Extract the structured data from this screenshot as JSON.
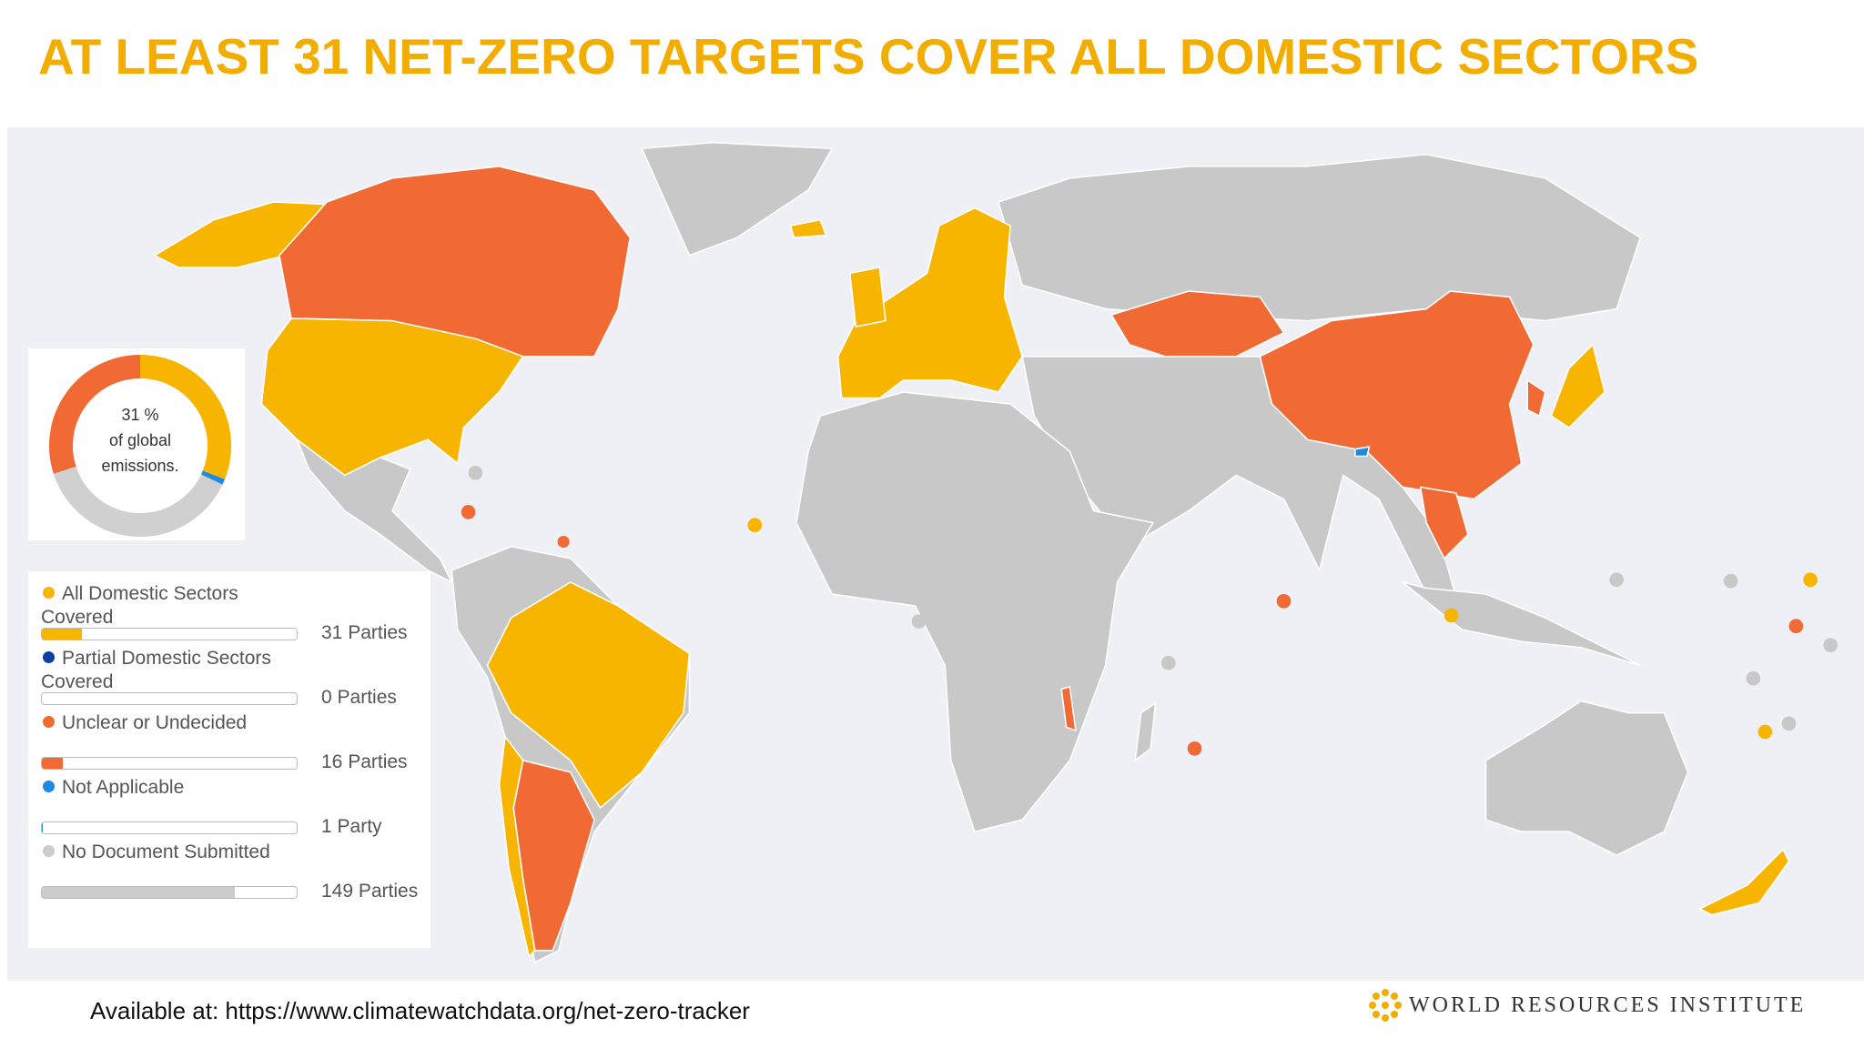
{
  "title": "AT LEAST 31 NET-ZERO TARGETS COVER ALL DOMESTIC SECTORS",
  "donut": {
    "center_label": "31 %",
    "caption": [
      "of global",
      "emissions."
    ],
    "values": [
      31,
      1,
      38,
      30
    ],
    "colors": [
      "#f7b500",
      "#1f8be0",
      "#d0d0d0",
      "#f26a33"
    ]
  },
  "legend": [
    {
      "label": "All Domestic Sectors Covered",
      "count": 31,
      "count_label": "31 Parties",
      "color": "#f7b500"
    },
    {
      "label": "Partial Domestic Sectors Covered",
      "count": 0,
      "count_label": "0 Parties",
      "color": "#0a3fa8"
    },
    {
      "label": "Unclear or Undecided",
      "count": 16,
      "count_label": "16 Parties",
      "color": "#f26a33"
    },
    {
      "label": "Not Applicable",
      "count": 1,
      "count_label": "1 Party",
      "color": "#1f8be0"
    },
    {
      "label": "No Document Submitted",
      "count": 149,
      "count_label": "149 Parties",
      "color": "#cccccc"
    }
  ],
  "footer": "Available at: https://www.climatewatchdata.org/net-zero-tracker",
  "org": "WORLD RESOURCES INSTITUTE"
}
